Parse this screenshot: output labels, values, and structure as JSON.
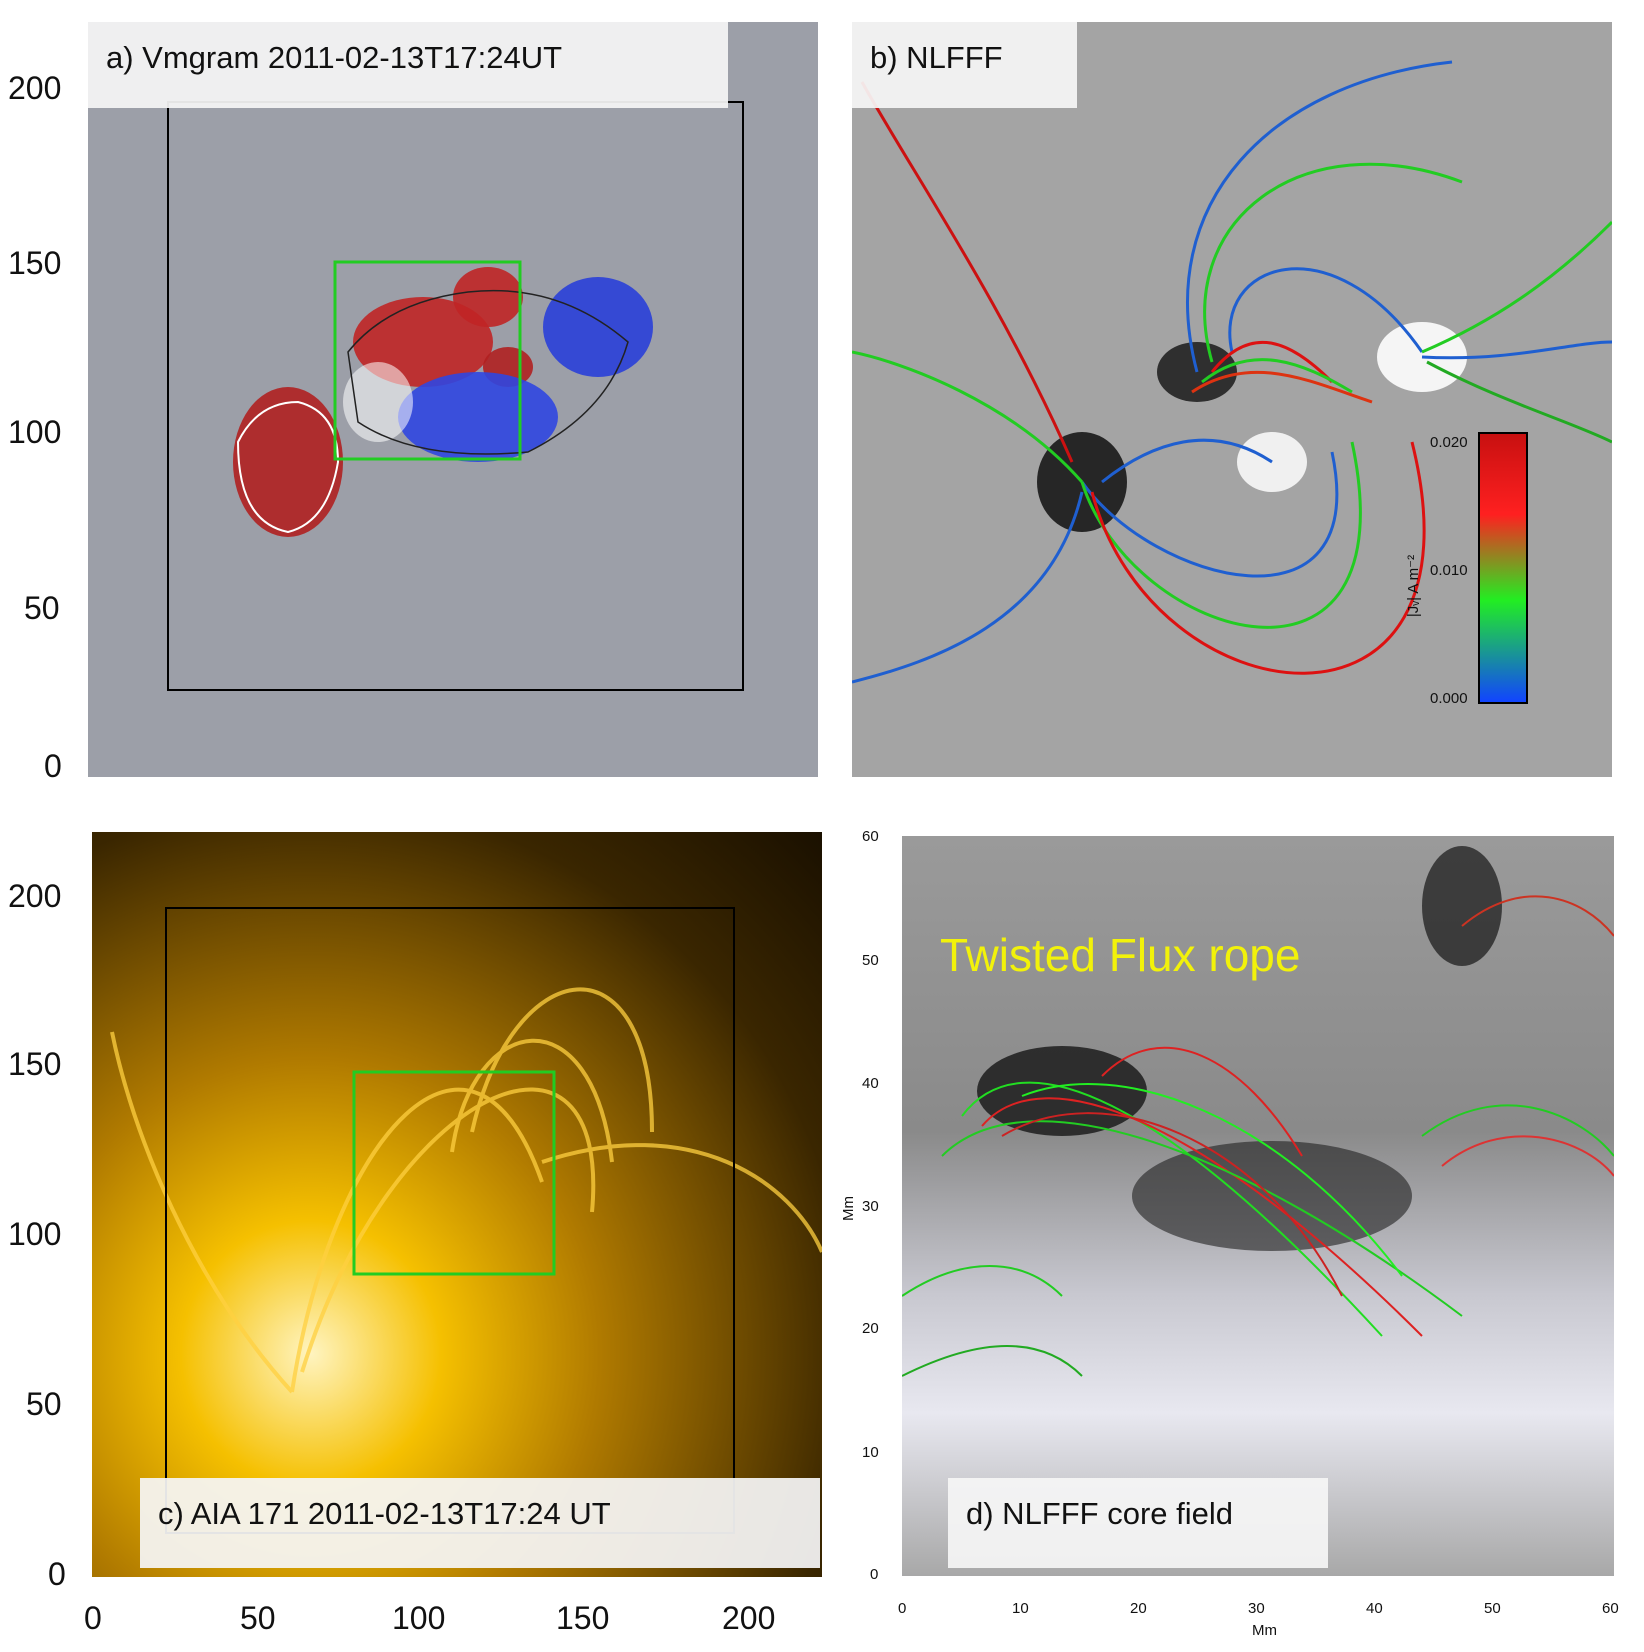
{
  "panels": {
    "a": {
      "label": "a) Vmgram 2011-02-13T17:24UT",
      "yticks": [
        "200",
        "150",
        "100",
        "50",
        "0"
      ]
    },
    "b": {
      "label": "b) NLFFF",
      "colorbar": {
        "title": "|Jᵥ| A m⁻²",
        "ticks": [
          "0.020",
          "0.010",
          "0.000"
        ]
      }
    },
    "c": {
      "label": "c) AIA 171 2011-02-13T17:24 UT",
      "yticks": [
        "200",
        "150",
        "100",
        "50",
        "0"
      ],
      "xticks": [
        "0",
        "50",
        "100",
        "150",
        "200"
      ]
    },
    "d": {
      "label": "d) NLFFF core field",
      "annotation": "Twisted Flux rope",
      "ylabel": "Mm",
      "xlabel": "Mm",
      "yticks": [
        "60",
        "50",
        "40",
        "30",
        "20",
        "10",
        "0"
      ],
      "xticks": [
        "0",
        "10",
        "20",
        "30",
        "40",
        "50",
        "60"
      ]
    }
  },
  "colors": {
    "magnetogram_gray": "#9c9fa8",
    "aia_gold": "#f0b000",
    "box_green": "#22cc22"
  }
}
